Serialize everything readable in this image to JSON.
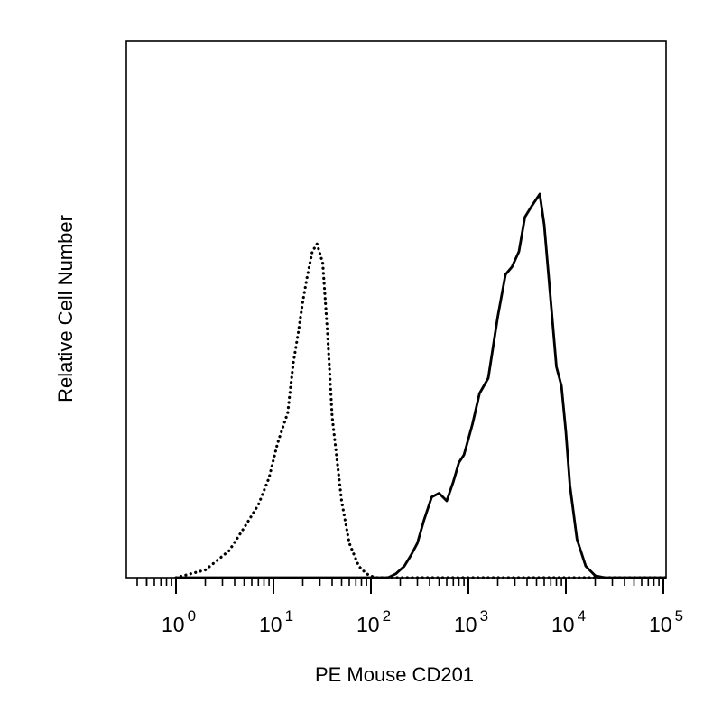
{
  "chart_data": {
    "type": "line",
    "title": "",
    "xlabel": "PE Mouse CD201",
    "ylabel": "Relative Cell Number",
    "xscale": "log",
    "xlim": [
      1,
      300000
    ],
    "ylim": [
      0,
      1.4
    ],
    "grid": false,
    "legend": "none",
    "x_ticks": [
      {
        "value": 1,
        "base": "10",
        "exp": "0"
      },
      {
        "value": 10,
        "base": "10",
        "exp": "1"
      },
      {
        "value": 100,
        "base": "10",
        "exp": "2"
      },
      {
        "value": 1000,
        "base": "10",
        "exp": "3"
      },
      {
        "value": 10000,
        "base": "10",
        "exp": "4"
      },
      {
        "value": 100000,
        "base": "10",
        "exp": "5"
      }
    ],
    "series": [
      {
        "style": "dotted",
        "color": "#000000",
        "x": [
          1,
          2,
          3.5,
          5,
          7,
          9,
          11,
          14,
          16,
          18,
          20,
          22,
          25,
          28,
          32,
          36,
          40,
          50,
          60,
          75,
          90,
          110,
          150,
          200,
          300000
        ],
        "y": [
          0.0,
          0.02,
          0.07,
          0.13,
          0.19,
          0.26,
          0.35,
          0.43,
          0.56,
          0.64,
          0.72,
          0.78,
          0.85,
          0.87,
          0.82,
          0.63,
          0.42,
          0.2,
          0.09,
          0.03,
          0.01,
          0.0,
          0.0,
          0.0,
          0.0
        ]
      },
      {
        "style": "solid",
        "color": "#000000",
        "x": [
          1,
          150,
          180,
          220,
          260,
          300,
          350,
          420,
          500,
          600,
          700,
          800,
          900,
          1100,
          1300,
          1600,
          2000,
          2400,
          2800,
          3300,
          3800,
          4500,
          5400,
          6000,
          7000,
          8000,
          9000,
          10000,
          11000,
          13000,
          16000,
          20000,
          25000,
          30000,
          300000
        ],
        "y": [
          0.0,
          0.0,
          0.01,
          0.03,
          0.06,
          0.09,
          0.15,
          0.21,
          0.22,
          0.2,
          0.25,
          0.3,
          0.32,
          0.4,
          0.48,
          0.52,
          0.68,
          0.79,
          0.81,
          0.85,
          0.94,
          0.97,
          1.0,
          0.92,
          0.72,
          0.55,
          0.5,
          0.38,
          0.24,
          0.1,
          0.03,
          0.005,
          0.0,
          0.0,
          0.0
        ]
      }
    ]
  }
}
